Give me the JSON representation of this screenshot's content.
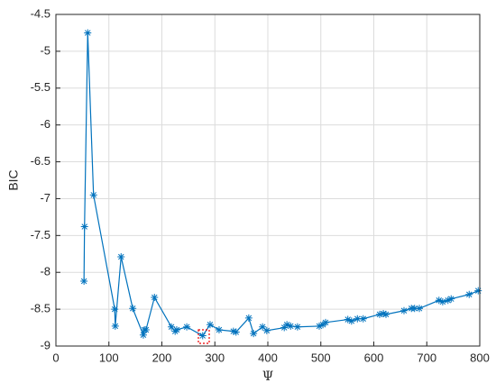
{
  "chart_data": {
    "type": "line",
    "xlabel": "Ψ",
    "ylabel": "BIC",
    "color": "#0072bd",
    "grid": true,
    "x": [
      53,
      54,
      60,
      71,
      111,
      112,
      123,
      145,
      165,
      167,
      170,
      186,
      218,
      225,
      228,
      247,
      277,
      291,
      308,
      335,
      340,
      364,
      373,
      390,
      398,
      431,
      436,
      443,
      456,
      497,
      504,
      509,
      551,
      558,
      569,
      580,
      611,
      618,
      623,
      657,
      671,
      677,
      686,
      723,
      730,
      740,
      746,
      780,
      797
    ],
    "values": [
      -8.12,
      -7.38,
      -4.75,
      -6.95,
      -8.5,
      -8.73,
      -7.79,
      -8.49,
      -8.85,
      -8.78,
      -8.78,
      -8.34,
      -8.74,
      -8.8,
      -8.78,
      -8.74,
      -8.86,
      -8.71,
      -8.78,
      -8.8,
      -8.81,
      -8.62,
      -8.83,
      -8.74,
      -8.79,
      -8.75,
      -8.71,
      -8.73,
      -8.74,
      -8.73,
      -8.71,
      -8.68,
      -8.64,
      -8.66,
      -8.63,
      -8.63,
      -8.57,
      -8.56,
      -8.57,
      -8.52,
      -8.49,
      -8.49,
      -8.49,
      -8.38,
      -8.4,
      -8.38,
      -8.36,
      -8.3,
      -8.25
    ],
    "xlim": [
      0,
      800
    ],
    "xticks": [
      0,
      100,
      200,
      300,
      400,
      500,
      600,
      700,
      800
    ],
    "ylim": [
      -9,
      -4.5
    ],
    "yticks": [
      -9,
      -8.5,
      -8,
      -7.5,
      -7,
      -6.5,
      -6,
      -5.5,
      -5,
      -4.5
    ]
  }
}
